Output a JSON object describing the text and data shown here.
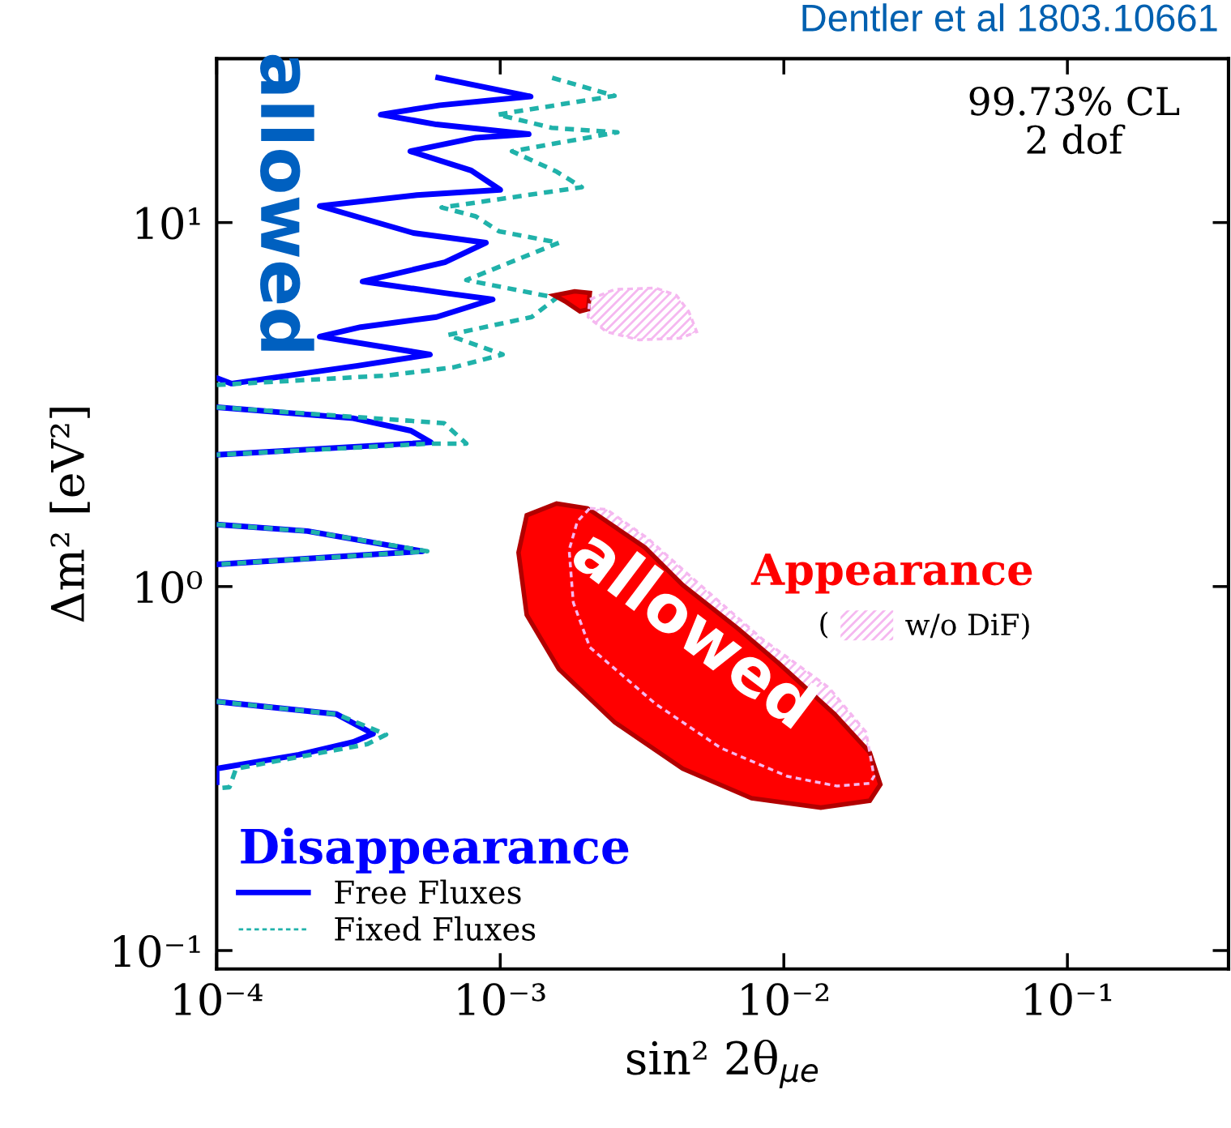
{
  "chart_data": {
    "type": "line",
    "log": "xy",
    "xlabel": "sin² 2θ$_{μe}$",
    "ylabel": "Δm² [eV²]",
    "xlim": [
      0.0001,
      0.37
    ],
    "ylim": [
      0.089,
      28.2
    ],
    "xticks": [
      {
        "value": 0.0001,
        "label": "10⁻⁴"
      },
      {
        "value": 0.001,
        "label": "10⁻³"
      },
      {
        "value": 0.01,
        "label": "10⁻²"
      },
      {
        "value": 0.1,
        "label": "10⁻¹"
      }
    ],
    "yticks": [
      {
        "value": 0.1,
        "label": "10⁻¹"
      },
      {
        "value": 1,
        "label": "10⁰"
      },
      {
        "value": 10,
        "label": "10¹"
      }
    ],
    "grid": false,
    "legend": "bottom left",
    "legend_title": "Disappearance",
    "annotations": [
      "Dentler et al 1803.10661",
      "99.73% CL\n2 dof",
      "allowed",
      "allowed",
      "Appearance",
      "("
    ],
    "series": [
      {
        "name": "Free Fluxes",
        "color": "#0000ff",
        "line_style": "solid",
        "x": [
          0.0001,
          0.000113,
          0.000314,
          0.000565,
          0.000231,
          0.000322,
          0.000596,
          0.00094,
          0.00063,
          0.000327,
          0.000638,
          0.00089,
          0.000494,
          0.000231,
          0.000508,
          0.001,
          0.00079,
          0.000482,
          0.00082,
          0.00126,
          0.000596,
          0.000379,
          0.000612,
          0.00128,
          0.000604,
          null,
          0.0001,
          0.000303,
          0.000484,
          0.000569,
          0.0001,
          null,
          0.0001,
          0.000209,
          0.000532,
          0.0001,
          null,
          0.0001,
          0.000265,
          0.000356,
          0.000303,
          0.000195,
          0.0001,
          0.0001
        ],
        "values": [
          3.74,
          3.61,
          4.04,
          4.34,
          4.86,
          5.16,
          5.5,
          6.15,
          6.41,
          6.89,
          7.78,
          8.8,
          9.36,
          11.1,
          11.9,
          12.3,
          13.9,
          15.7,
          17.1,
          17.5,
          18.6,
          19.8,
          21.0,
          22.2,
          25.0,
          null,
          3.11,
          2.9,
          2.68,
          2.49,
          2.3,
          null,
          1.48,
          1.42,
          1.25,
          1.15,
          null,
          0.483,
          0.446,
          0.394,
          0.374,
          0.345,
          0.316,
          0.29
        ]
      },
      {
        "name": "Fixed Fluxes",
        "color": "#20b2aa",
        "line_style": "dashed",
        "x": [
          0.0001,
          0.000399,
          0.000682,
          0.00102,
          0.000655,
          0.00129,
          0.00158,
          0.000759,
          0.00161,
          0.00099,
          0.00082,
          0.000621,
          0.00194,
          0.00158,
          0.0011,
          0.00259,
          0.00152,
          0.00098,
          0.00253,
          0.00152,
          null,
          0.0001,
          0.000634,
          0.000759,
          0.000569,
          0.0001,
          null,
          0.0001,
          0.000209,
          0.000553,
          0.0001,
          null,
          0.0001,
          0.000265,
          0.000396,
          0.00034,
          0.000117,
          0.000111,
          0.0001
        ],
        "values": [
          3.58,
          3.8,
          4.0,
          4.34,
          4.91,
          5.5,
          6.21,
          6.95,
          8.8,
          9.46,
          10.4,
          11.0,
          12.5,
          13.8,
          15.7,
          17.7,
          18.2,
          19.8,
          22.3,
          25.0,
          null,
          3.11,
          2.81,
          2.47,
          2.47,
          2.3,
          null,
          1.48,
          1.42,
          1.25,
          1.15,
          null,
          0.483,
          0.446,
          0.392,
          0.369,
          0.316,
          0.281,
          0.279
        ]
      },
      {
        "type": "area",
        "color": "#ff0000",
        "x": [
          0.00116,
          0.00124,
          0.00158,
          0.00203,
          0.00324,
          0.0044,
          0.0069,
          0.0096,
          0.0151,
          0.0201,
          0.0219,
          0.0201,
          0.0135,
          0.0077,
          0.0044,
          0.00253,
          0.00161,
          0.00124,
          null,
          0.00155,
          0.00183,
          0.00207,
          0.00204,
          0.00191,
          0.00169
        ],
        "values": [
          1.24,
          1.57,
          1.69,
          1.64,
          1.28,
          1.01,
          0.766,
          0.615,
          0.446,
          0.35,
          0.286,
          0.258,
          0.247,
          0.262,
          0.316,
          0.424,
          0.593,
          0.836,
          null,
          6.31,
          6.47,
          6.41,
          5.78,
          5.7,
          6.08
        ]
      },
      {
        "name": "w/o DiF)",
        "type": "area",
        "color": "#f5b8f0",
        "line_style": "dashed",
        "x": [
          0.00207,
          0.00237,
          0.0033,
          0.00493,
          0.0084,
          0.0144,
          0.0195,
          0.0208,
          0.0201,
          0.0154,
          0.0103,
          0.006,
          0.00353,
          0.00207,
          0.00181,
          0.00175,
          0.00187,
          null,
          0.00207,
          0.00253,
          0.00353,
          0.00418,
          0.00462,
          0.00493,
          0.00431,
          0.00309,
          0.00237,
          0.00204
        ],
        "values": [
          1.64,
          1.63,
          1.36,
          1.03,
          0.717,
          0.528,
          0.398,
          0.301,
          0.288,
          0.283,
          0.301,
          0.36,
          0.476,
          0.681,
          0.903,
          1.26,
          1.51,
          null,
          6.15,
          6.55,
          6.61,
          6.31,
          5.7,
          5.01,
          4.81,
          4.76,
          5.01,
          5.5
        ]
      }
    ]
  }
}
